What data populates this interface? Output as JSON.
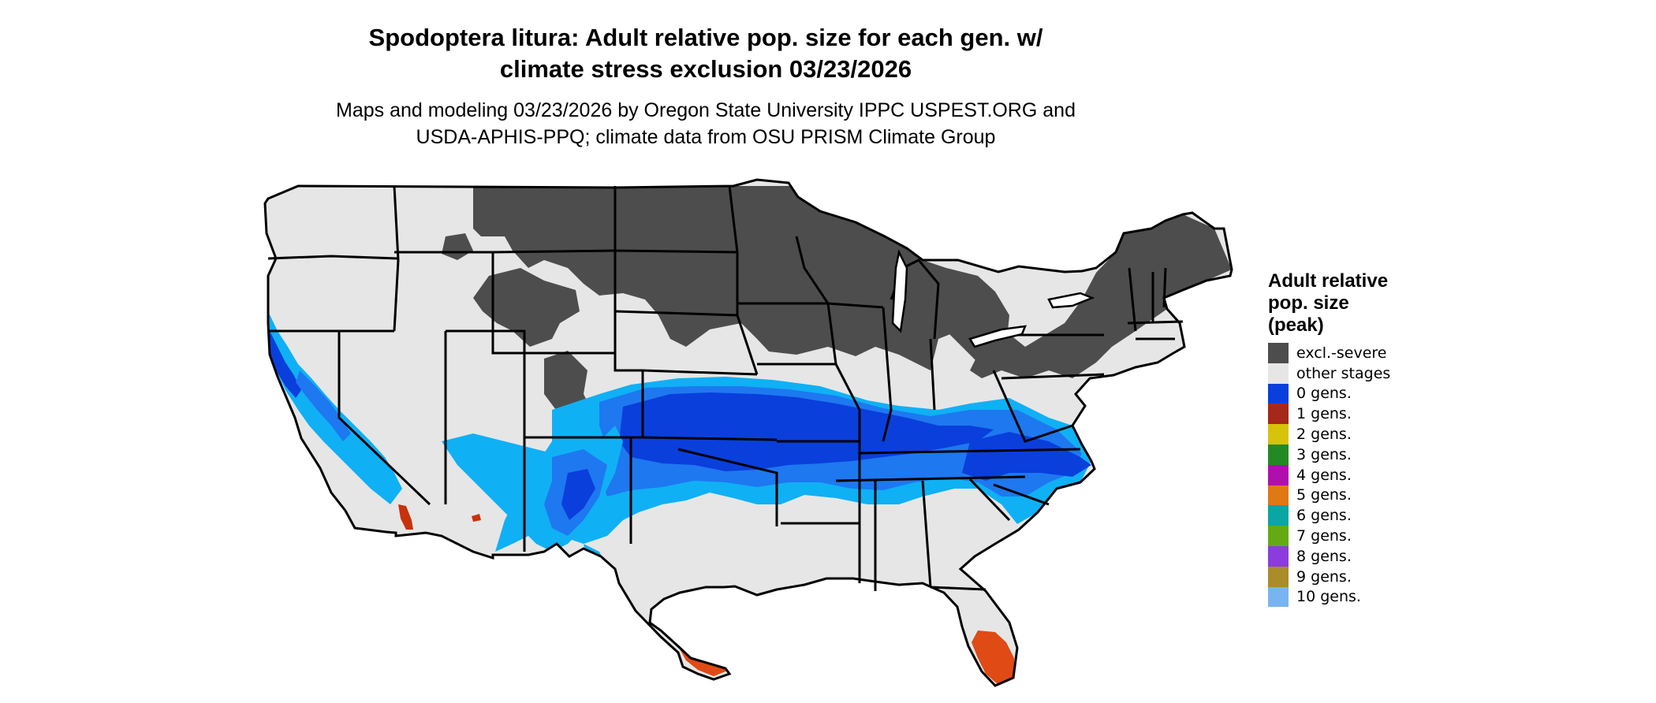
{
  "title_line1": "Spodoptera litura: Adult relative pop. size for each gen. w/",
  "title_line2": "climate stress exclusion 03/23/2026",
  "subtitle_line1": "Maps and modeling 03/23/2026 by Oregon State University IPPC USPEST.ORG and",
  "subtitle_line2": "USDA-APHIS-PPQ; climate data from OSU PRISM Climate Group",
  "legend": {
    "title_line1": "Adult relative",
    "title_line2": "pop. size",
    "title_line3": "(peak)",
    "items": [
      {
        "label": "excl.-severe",
        "color": "#4d4d4d"
      },
      {
        "label": "other stages",
        "color": "#e6e6e6"
      },
      {
        "label": "0 gens.",
        "color": "#0a3fdc"
      },
      {
        "label": "1 gens.",
        "color": "#a52818"
      },
      {
        "label": "2 gens.",
        "color": "#d7c30a"
      },
      {
        "label": "3 gens.",
        "color": "#238a23"
      },
      {
        "label": "4 gens.",
        "color": "#b00fb0"
      },
      {
        "label": "5 gens.",
        "color": "#e07814"
      },
      {
        "label": "6 gens.",
        "color": "#0aa5a5"
      },
      {
        "label": "7 gens.",
        "color": "#64aa14"
      },
      {
        "label": "8 gens.",
        "color": "#8c3cdc"
      },
      {
        "label": "9 gens.",
        "color": "#aa8c28"
      },
      {
        "label": "10 gens.",
        "color": "#78b4f0"
      }
    ]
  },
  "map_colors": {
    "background_land": "#e6e6e6",
    "excluded": "#4d4d4d",
    "blue_dark": "#0a3fdc",
    "blue_mid": "#1e78f0",
    "blue_light": "#10b0f5",
    "red": "#c8320a",
    "orange_red": "#e04a14",
    "border": "#000000"
  }
}
